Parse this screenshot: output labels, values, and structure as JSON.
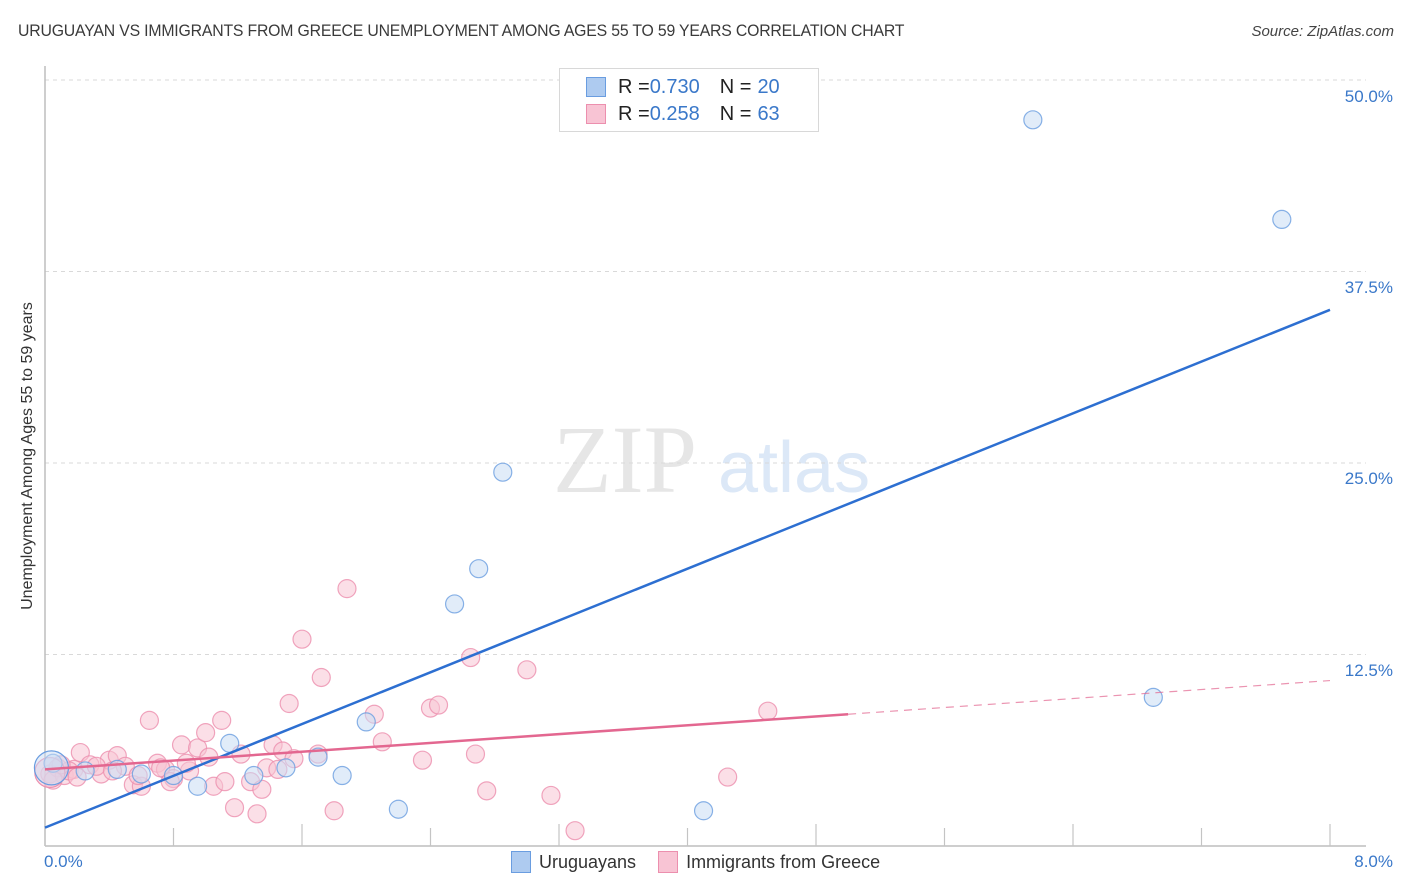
{
  "header": {
    "title": "URUGUAYAN VS IMMIGRANTS FROM GREECE UNEMPLOYMENT AMONG AGES 55 TO 59 YEARS CORRELATION CHART",
    "source": "Source: ZipAtlas.com"
  },
  "watermark": {
    "zip": "ZIP",
    "atlas": "atlas"
  },
  "axes": {
    "ylabel": "Unemployment Among Ages 55 to 59 years",
    "yticks": [
      "50.0%",
      "37.5%",
      "25.0%",
      "12.5%"
    ],
    "xticks": {
      "min": "0.0%",
      "max": "8.0%"
    }
  },
  "legend_top": {
    "rows": [
      {
        "r_label": "R = ",
        "r_value": "0.730",
        "n_label": "N = ",
        "n_value": "20",
        "color": "#aecbf0",
        "border": "#6a9de0"
      },
      {
        "r_label": "R = ",
        "r_value": "0.258",
        "n_label": "N = ",
        "n_value": "63",
        "color": "#f8c4d4",
        "border": "#ec8fae"
      }
    ]
  },
  "legend_bottom": {
    "items": [
      {
        "label": "Uruguayans",
        "color": "#aecbf0",
        "border": "#6a9de0"
      },
      {
        "label": "Immigrants from Greece",
        "color": "#f8c4d4",
        "border": "#ec8fae"
      }
    ]
  },
  "colors": {
    "blue_series": "#3a78c9",
    "blue_line": "#2d6fd1",
    "pink_series": "#ec8fae",
    "pink_line": "#e36790",
    "tick_text": "#3a78c9",
    "grid": "#d6d6d6"
  },
  "chart_data": {
    "type": "scatter",
    "title": "URUGUAYAN VS IMMIGRANTS FROM GREECE UNEMPLOYMENT AMONG AGES 55 TO 59 YEARS CORRELATION CHART",
    "xlabel": "",
    "ylabel": "Unemployment Among Ages 55 to 59 years",
    "xlim": [
      0,
      8
    ],
    "ylim": [
      0,
      50
    ],
    "x_unit": "%",
    "y_unit": "%",
    "grid": true,
    "legend_position": "top-center",
    "series": [
      {
        "name": "Uruguayans",
        "R": 0.73,
        "N": 20,
        "color": "#6a9de0",
        "trend": {
          "x": [
            0,
            8
          ],
          "y": [
            1.2,
            35.0
          ]
        },
        "points": [
          {
            "x": 0.05,
            "y": 5.4
          },
          {
            "x": 0.25,
            "y": 4.9
          },
          {
            "x": 0.45,
            "y": 5.0
          },
          {
            "x": 0.6,
            "y": 4.7
          },
          {
            "x": 0.8,
            "y": 4.6
          },
          {
            "x": 0.95,
            "y": 3.9
          },
          {
            "x": 1.15,
            "y": 6.7
          },
          {
            "x": 1.3,
            "y": 4.6
          },
          {
            "x": 1.5,
            "y": 5.1
          },
          {
            "x": 1.7,
            "y": 5.8
          },
          {
            "x": 1.85,
            "y": 4.6
          },
          {
            "x": 2.0,
            "y": 8.1
          },
          {
            "x": 2.2,
            "y": 2.4
          },
          {
            "x": 2.55,
            "y": 15.8
          },
          {
            "x": 2.7,
            "y": 18.1
          },
          {
            "x": 2.85,
            "y": 24.4
          },
          {
            "x": 4.1,
            "y": 2.3
          },
          {
            "x": 6.15,
            "y": 47.4
          },
          {
            "x": 6.9,
            "y": 9.7
          },
          {
            "x": 7.7,
            "y": 40.9
          }
        ]
      },
      {
        "name": "Immigrants from Greece",
        "R": 0.258,
        "N": 63,
        "color": "#ec8fae",
        "trend": {
          "x": [
            0,
            5.0,
            8
          ],
          "y": [
            5.0,
            8.6,
            10.8
          ],
          "solid_until_x": 5.0
        },
        "points": [
          {
            "x": 0.03,
            "y": 4.7
          },
          {
            "x": 0.08,
            "y": 5.1
          },
          {
            "x": 0.12,
            "y": 4.6
          },
          {
            "x": 0.18,
            "y": 5.0
          },
          {
            "x": 0.22,
            "y": 6.1
          },
          {
            "x": 0.28,
            "y": 5.3
          },
          {
            "x": 0.35,
            "y": 4.7
          },
          {
            "x": 0.4,
            "y": 5.6
          },
          {
            "x": 0.45,
            "y": 5.9
          },
          {
            "x": 0.5,
            "y": 5.2
          },
          {
            "x": 0.55,
            "y": 4.0
          },
          {
            "x": 0.6,
            "y": 3.9
          },
          {
            "x": 0.65,
            "y": 8.2
          },
          {
            "x": 0.7,
            "y": 5.4
          },
          {
            "x": 0.75,
            "y": 5.0
          },
          {
            "x": 0.8,
            "y": 4.4
          },
          {
            "x": 0.85,
            "y": 6.6
          },
          {
            "x": 0.9,
            "y": 4.9
          },
          {
            "x": 0.95,
            "y": 6.4
          },
          {
            "x": 1.0,
            "y": 7.4
          },
          {
            "x": 1.05,
            "y": 3.9
          },
          {
            "x": 1.1,
            "y": 8.2
          },
          {
            "x": 1.12,
            "y": 4.2
          },
          {
            "x": 1.18,
            "y": 2.5
          },
          {
            "x": 1.22,
            "y": 6.0
          },
          {
            "x": 1.28,
            "y": 4.2
          },
          {
            "x": 1.32,
            "y": 2.1
          },
          {
            "x": 1.38,
            "y": 5.1
          },
          {
            "x": 1.42,
            "y": 6.6
          },
          {
            "x": 1.48,
            "y": 6.2
          },
          {
            "x": 1.55,
            "y": 5.7
          },
          {
            "x": 1.52,
            "y": 9.3
          },
          {
            "x": 1.6,
            "y": 13.5
          },
          {
            "x": 1.72,
            "y": 11.0
          },
          {
            "x": 1.8,
            "y": 2.3
          },
          {
            "x": 1.88,
            "y": 16.8
          },
          {
            "x": 2.05,
            "y": 8.6
          },
          {
            "x": 2.1,
            "y": 6.8
          },
          {
            "x": 2.35,
            "y": 5.6
          },
          {
            "x": 2.4,
            "y": 9.0
          },
          {
            "x": 2.45,
            "y": 9.2
          },
          {
            "x": 2.65,
            "y": 12.3
          },
          {
            "x": 2.68,
            "y": 6.0
          },
          {
            "x": 2.75,
            "y": 3.6
          },
          {
            "x": 3.0,
            "y": 11.5
          },
          {
            "x": 3.15,
            "y": 3.3
          },
          {
            "x": 3.3,
            "y": 1.0
          },
          {
            "x": 4.25,
            "y": 4.5
          },
          {
            "x": 4.5,
            "y": 8.8
          },
          {
            "x": 1.7,
            "y": 6.0
          },
          {
            "x": 0.15,
            "y": 4.9
          },
          {
            "x": 0.32,
            "y": 5.2
          },
          {
            "x": 0.58,
            "y": 4.6
          },
          {
            "x": 0.72,
            "y": 5.1
          },
          {
            "x": 0.88,
            "y": 5.4
          },
          {
            "x": 1.02,
            "y": 5.8
          },
          {
            "x": 0.42,
            "y": 4.9
          },
          {
            "x": 0.2,
            "y": 4.5
          },
          {
            "x": 0.1,
            "y": 5.3
          },
          {
            "x": 1.35,
            "y": 3.7
          },
          {
            "x": 0.78,
            "y": 4.2
          },
          {
            "x": 1.45,
            "y": 5.0
          },
          {
            "x": 0.05,
            "y": 4.3
          }
        ]
      }
    ]
  }
}
